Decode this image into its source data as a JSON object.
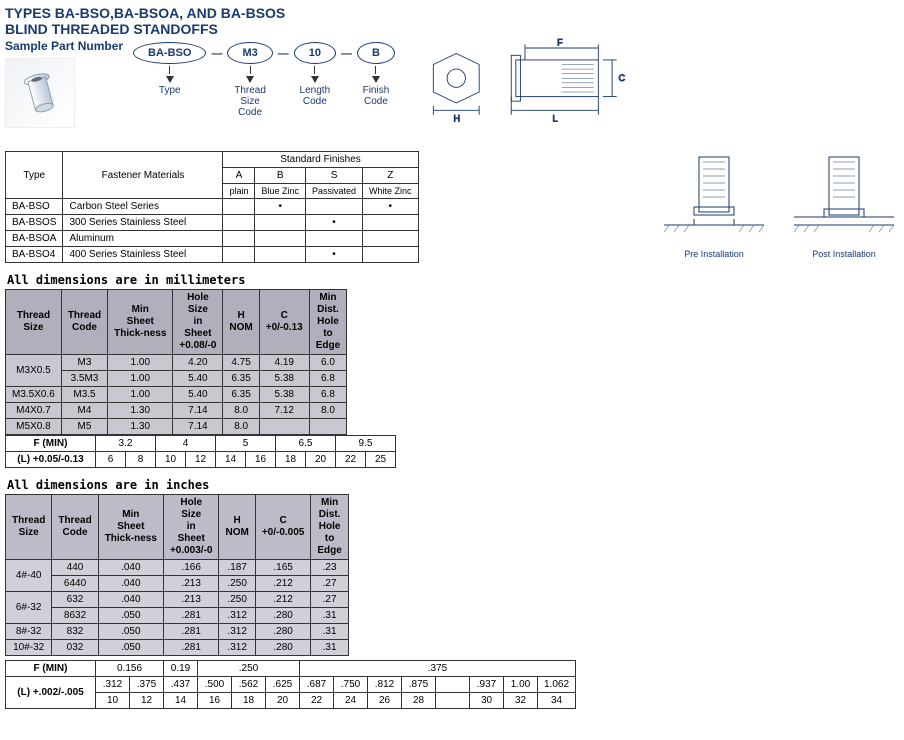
{
  "title1": "TYPES BA-BSO,BA-BSOA,  AND BA-BSOS",
  "title2": "BLIND THREADED STANDOFFS",
  "sample_label": "Sample Part Number",
  "codes": {
    "items": [
      {
        "val": "BA-BSO",
        "lbl": "Type"
      },
      {
        "val": "M3",
        "lbl": "Thread\nSize\nCode"
      },
      {
        "val": "10",
        "lbl": "Length\nCode"
      },
      {
        "val": "B",
        "lbl": "Finish\nCode"
      }
    ]
  },
  "tech_labels": {
    "H": "H",
    "F": "F",
    "L": "L",
    "C": "C"
  },
  "finishes": {
    "headers": [
      "Type",
      "Fastener Materials",
      "A",
      "B",
      "S",
      "Z"
    ],
    "sub": [
      "plain",
      "Blue Zinc",
      "Passivated",
      "White Zinc"
    ],
    "group": "Standard Finishes",
    "rows": [
      [
        "BA-BSO",
        "Carbon Steel Series",
        "",
        "•",
        "",
        "•"
      ],
      [
        "BA-BSOS",
        "300 Series Stainless Steel",
        "",
        "",
        "•",
        ""
      ],
      [
        "BA-BSOA",
        "Aluminum",
        "",
        "",
        "",
        ""
      ],
      [
        "BA-BSO4",
        "400 Series Stainless Steel",
        "",
        "",
        "•",
        ""
      ]
    ]
  },
  "install": {
    "pre": "Pre Installation",
    "post": "Post Installation"
  },
  "mm": {
    "caption": "All dimensions are in millimeters",
    "headers": [
      "Thread Size",
      "Thread Code",
      "Min Sheet Thick-ness",
      "Hole Size in Sheet +0.08/-0",
      "H NOM",
      "C +0/-0.13",
      "Min Dist. Hole to Edge"
    ],
    "rows": [
      [
        "M3X0.5",
        "M3",
        "1.00",
        "4.20",
        "4.75",
        "4.19",
        "6.0"
      ],
      [
        "",
        "3.5M3",
        "1.00",
        "5.40",
        "6.35",
        "5.38",
        "6.8"
      ],
      [
        "M3.5X0.6",
        "M3.5",
        "1.00",
        "5.40",
        "6.35",
        "5.38",
        "6.8"
      ],
      [
        "M4X0.7",
        "M4",
        "1.30",
        "7.14",
        "8.0",
        "7.12",
        "8.0"
      ],
      [
        "M5X0.8",
        "M5",
        "1.30",
        "7.14",
        "8.0",
        "",
        ""
      ]
    ],
    "fmin_label": "F (MIN)",
    "fmin": [
      "3.2",
      "4",
      "5",
      "6.5",
      "9.5"
    ],
    "l_label": "(L) +0.05/-0.13",
    "l": [
      "6",
      "8",
      "10",
      "12",
      "14",
      "16",
      "18",
      "20",
      "22",
      "25"
    ]
  },
  "in": {
    "caption": "All dimensions are in inches",
    "headers": [
      "Thread Size",
      "Thread Code",
      "Min Sheet Thick-ness",
      "Hole Size in Sheet +0.003/-0",
      "H NOM",
      "C +0/-0.005",
      "Min Dist. Hole to Edge"
    ],
    "rows": [
      [
        "4#-40",
        "440",
        ".040",
        ".166",
        ".187",
        ".165",
        ".23"
      ],
      [
        "",
        "6440",
        ".040",
        ".213",
        ".250",
        ".212",
        ".27"
      ],
      [
        "6#-32",
        "632",
        ".040",
        ".213",
        ".250",
        ".212",
        ".27"
      ],
      [
        "",
        "8632",
        ".050",
        ".281",
        ".312",
        ".280",
        ".31"
      ],
      [
        "8#-32",
        "832",
        ".050",
        ".281",
        ".312",
        ".280",
        ".31"
      ],
      [
        "10#-32",
        "032",
        ".050",
        ".281",
        ".312",
        ".280",
        ".31"
      ]
    ],
    "fmin_label": "F (MIN)",
    "fmin": [
      "0.156",
      "0.19",
      ".250",
      ".375"
    ],
    "l_label": "(L) +.002/-.005",
    "l_top": [
      ".312",
      ".375",
      ".437",
      ".500",
      ".562",
      ".625",
      ".687",
      ".750",
      ".812",
      ".875",
      "",
      ".937",
      "1.00",
      "1.062"
    ],
    "l_bot": [
      "10",
      "12",
      "14",
      "16",
      "18",
      "20",
      "22",
      "24",
      "26",
      "28",
      "",
      "30",
      "32",
      "34"
    ]
  },
  "colors": {
    "line": "#1a3a6e",
    "grid": "#333333",
    "bg_header": "#b0b0bc",
    "bg_cell": "#c8c8d0"
  }
}
